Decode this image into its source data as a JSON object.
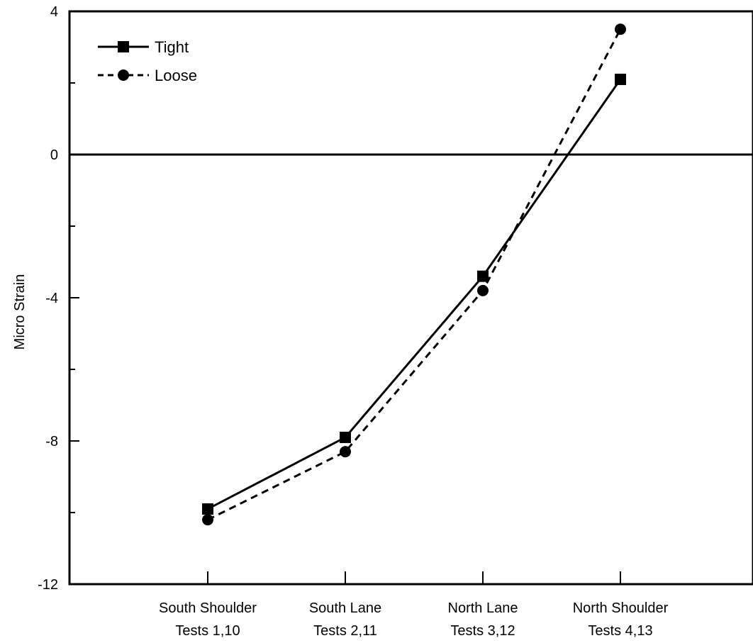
{
  "chart_data": {
    "type": "line",
    "title": "",
    "ylabel": "Micro Strain",
    "xlabel": "",
    "ylim": [
      -12,
      4
    ],
    "yticks": [
      {
        "value": 4,
        "label": "4"
      },
      {
        "value": 0,
        "label": "0"
      },
      {
        "value": -4,
        "label": "-4"
      },
      {
        "value": -8,
        "label": "-8"
      },
      {
        "value": -12,
        "label": "-12"
      }
    ],
    "categories": [
      {
        "line1": "South Shoulder",
        "line2": "Tests 1,10"
      },
      {
        "line1": "South Lane",
        "line2": "Tests 2,11"
      },
      {
        "line1": "North Lane",
        "line2": "Tests 3,12"
      },
      {
        "line1": "North Shoulder",
        "line2": "Tests 4,13"
      }
    ],
    "zero_line": true,
    "grid": false,
    "legend_position": "top-left",
    "series": [
      {
        "name": "Tight",
        "values": [
          -9.9,
          -7.9,
          -3.4,
          2.1
        ],
        "marker": "square",
        "dash": "solid"
      },
      {
        "name": "Loose",
        "values": [
          -10.2,
          -8.3,
          -3.8,
          3.5
        ],
        "marker": "circle",
        "dash": "dashed"
      }
    ]
  }
}
